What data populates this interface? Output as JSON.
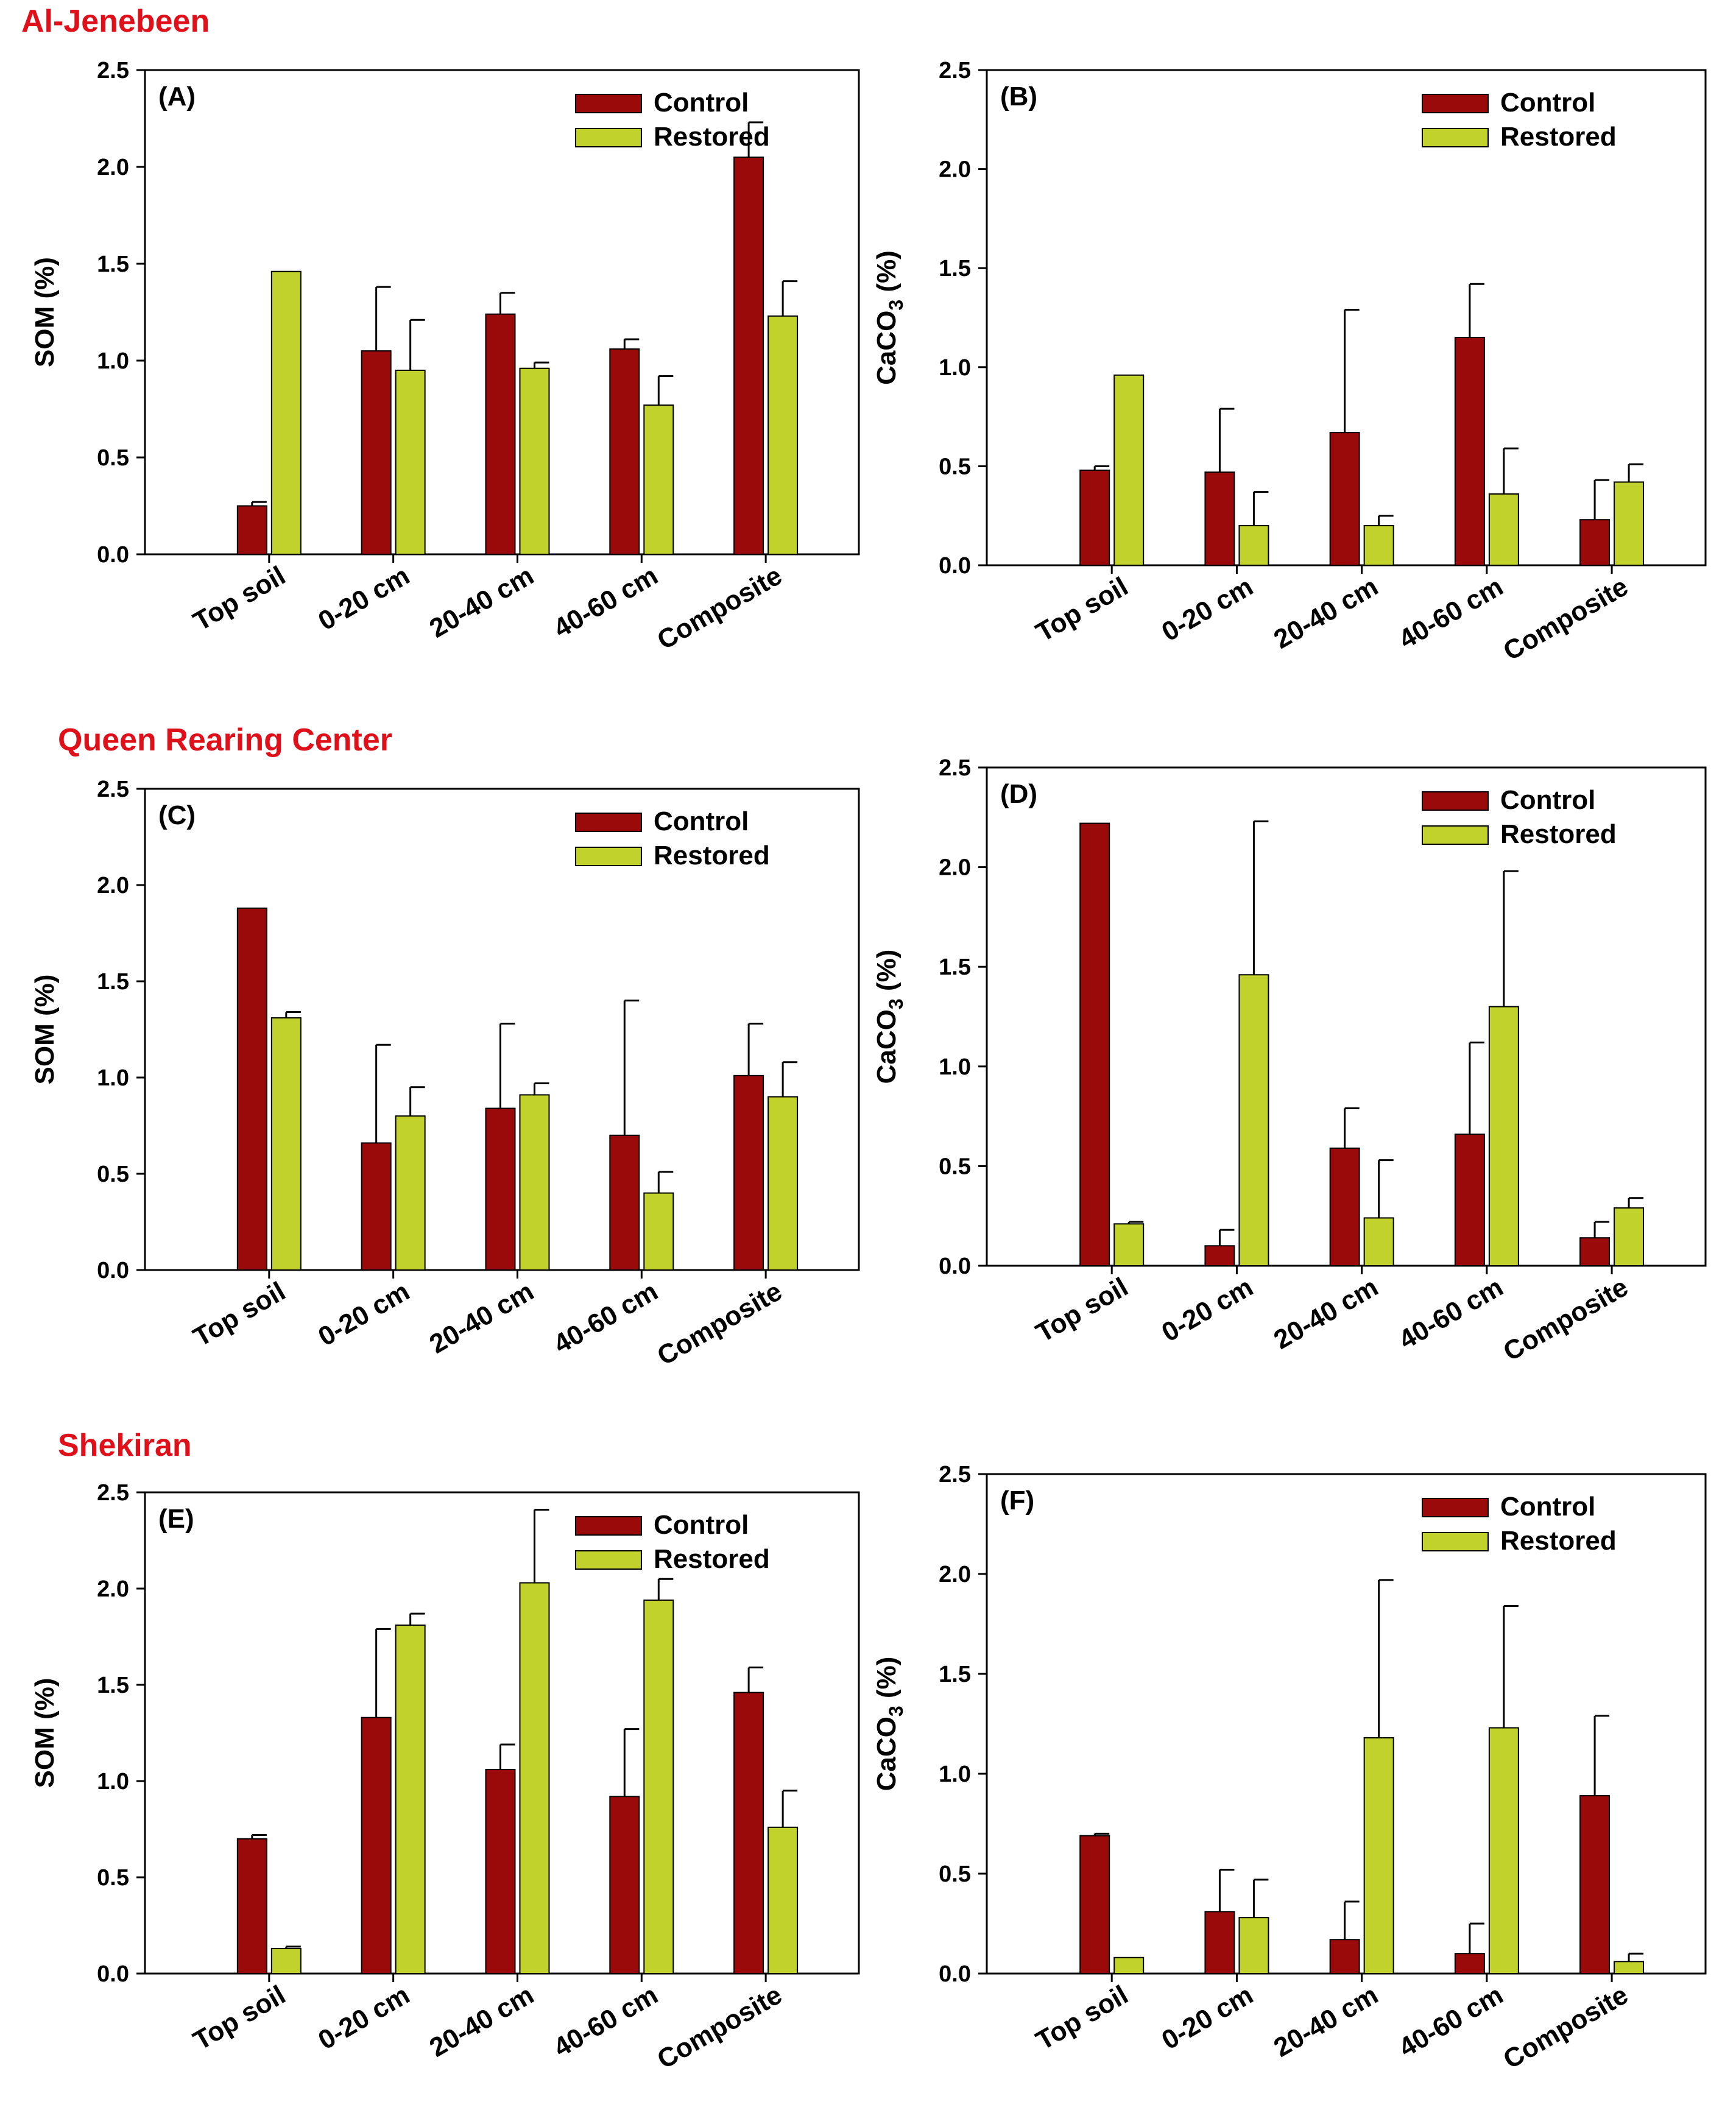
{
  "colors": {
    "control": "#9b0a0a",
    "restored": "#c2d22c",
    "title": "#e0101a",
    "axis": "#000000"
  },
  "sites": [
    {
      "title": "Al-Jenebeen"
    },
    {
      "title": "Queen Rearing Center"
    },
    {
      "title": "Shekiran"
    }
  ],
  "chart_data": [
    {
      "type": "bar",
      "panel": "(A)",
      "site": "Al-Jenebeen",
      "ylabel": "SOM (%)",
      "ylim": [
        0,
        2.5
      ],
      "yticks": [
        "0.0",
        "0.5",
        "1.0",
        "1.5",
        "2.0",
        "2.5"
      ],
      "categories": [
        "Top soil",
        "0-20 cm",
        "20-40 cm",
        "40-60 cm",
        "Composite"
      ],
      "legend": "top-right",
      "series": [
        {
          "name": "Control",
          "values": [
            0.25,
            1.05,
            1.24,
            1.06,
            2.05
          ],
          "errors": [
            0.02,
            0.33,
            0.11,
            0.05,
            0.18
          ]
        },
        {
          "name": "Restored",
          "values": [
            1.46,
            0.95,
            0.96,
            0.77,
            1.23
          ],
          "errors": [
            0.0,
            0.26,
            0.03,
            0.15,
            0.18
          ]
        }
      ]
    },
    {
      "type": "bar",
      "panel": "(B)",
      "site": "Al-Jenebeen",
      "ylabel": "CaCO3 (%)",
      "ylim": [
        0,
        2.5
      ],
      "yticks": [
        "0.0",
        "0.5",
        "1.0",
        "1.5",
        "2.0",
        "2.5"
      ],
      "categories": [
        "Top soil",
        "0-20 cm",
        "20-40 cm",
        "40-60 cm",
        "Composite"
      ],
      "legend": "top-right",
      "series": [
        {
          "name": "Control",
          "values": [
            0.48,
            0.47,
            0.67,
            1.15,
            0.23
          ],
          "errors": [
            0.02,
            0.32,
            0.62,
            0.27,
            0.2
          ]
        },
        {
          "name": "Restored",
          "values": [
            0.96,
            0.2,
            0.2,
            0.36,
            0.42
          ],
          "errors": [
            0.0,
            0.17,
            0.05,
            0.23,
            0.09
          ]
        }
      ]
    },
    {
      "type": "bar",
      "panel": "(C)",
      "site": "Queen Rearing Center",
      "ylabel": "SOM (%)",
      "ylim": [
        0,
        2.5
      ],
      "yticks": [
        "0.0",
        "0.5",
        "1.0",
        "1.5",
        "2.0",
        "2.5"
      ],
      "categories": [
        "Top soil",
        "0-20 cm",
        "20-40 cm",
        "40-60 cm",
        "Composite"
      ],
      "legend": "top-right",
      "series": [
        {
          "name": "Control",
          "values": [
            1.88,
            0.66,
            0.84,
            0.7,
            1.01
          ],
          "errors": [
            0.0,
            0.51,
            0.44,
            0.7,
            0.27
          ]
        },
        {
          "name": "Restored",
          "values": [
            1.31,
            0.8,
            0.91,
            0.4,
            0.9
          ],
          "errors": [
            0.03,
            0.15,
            0.06,
            0.11,
            0.18
          ]
        }
      ]
    },
    {
      "type": "bar",
      "panel": "(D)",
      "site": "Queen Rearing Center",
      "ylabel": "CaCO3 (%)",
      "ylim": [
        0,
        2.5
      ],
      "yticks": [
        "0.0",
        "0.5",
        "1.0",
        "1.5",
        "2.0",
        "2.5"
      ],
      "categories": [
        "Top soil",
        "0-20 cm",
        "20-40 cm",
        "40-60 cm",
        "Composite"
      ],
      "legend": "top-right",
      "series": [
        {
          "name": "Control",
          "values": [
            2.22,
            0.1,
            0.59,
            0.66,
            0.14
          ],
          "errors": [
            0.0,
            0.08,
            0.2,
            0.46,
            0.08
          ]
        },
        {
          "name": "Restored",
          "values": [
            0.21,
            1.46,
            0.24,
            1.3,
            0.29
          ],
          "errors": [
            0.01,
            0.77,
            0.29,
            0.68,
            0.05
          ]
        }
      ]
    },
    {
      "type": "bar",
      "panel": "(E)",
      "site": "Shekiran",
      "ylabel": "SOM (%)",
      "ylim": [
        0,
        2.5
      ],
      "yticks": [
        "0.0",
        "0.5",
        "1.0",
        "1.5",
        "2.0",
        "2.5"
      ],
      "categories": [
        "Top soil",
        "0-20 cm",
        "20-40 cm",
        "40-60 cm",
        "Composite"
      ],
      "legend": "top-right",
      "series": [
        {
          "name": "Control",
          "values": [
            0.7,
            1.33,
            1.06,
            0.92,
            1.46
          ],
          "errors": [
            0.02,
            0.46,
            0.13,
            0.35,
            0.13
          ]
        },
        {
          "name": "Restored",
          "values": [
            0.13,
            1.81,
            2.03,
            1.94,
            0.76
          ],
          "errors": [
            0.01,
            0.06,
            0.38,
            0.11,
            0.19
          ]
        }
      ]
    },
    {
      "type": "bar",
      "panel": "(F)",
      "site": "Shekiran",
      "ylabel": "CaCO3 (%)",
      "ylim": [
        0,
        2.5
      ],
      "yticks": [
        "0.0",
        "0.5",
        "1.0",
        "1.5",
        "2.0",
        "2.5"
      ],
      "categories": [
        "Top soil",
        "0-20 cm",
        "20-40 cm",
        "40-60 cm",
        "Composite"
      ],
      "legend": "top-right",
      "series": [
        {
          "name": "Control",
          "values": [
            0.69,
            0.31,
            0.17,
            0.1,
            0.89
          ],
          "errors": [
            0.01,
            0.21,
            0.19,
            0.15,
            0.4
          ]
        },
        {
          "name": "Restored",
          "values": [
            0.08,
            0.28,
            1.18,
            1.23,
            0.06
          ],
          "errors": [
            0.0,
            0.19,
            0.79,
            0.61,
            0.04
          ]
        }
      ]
    }
  ]
}
